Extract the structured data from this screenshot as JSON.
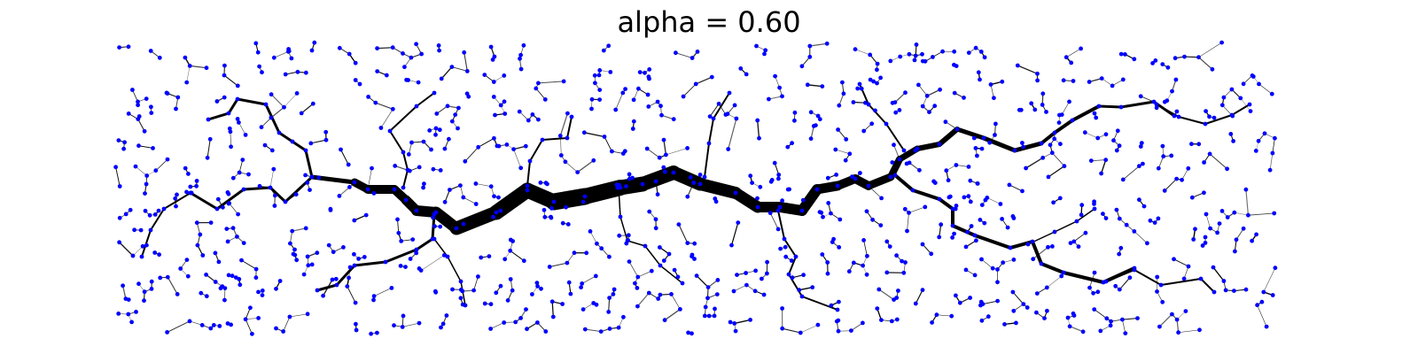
{
  "title": "alpha = 0.60",
  "colors": {
    "node": "#0000ff",
    "edge": "#000000",
    "background": "#ffffff"
  }
}
